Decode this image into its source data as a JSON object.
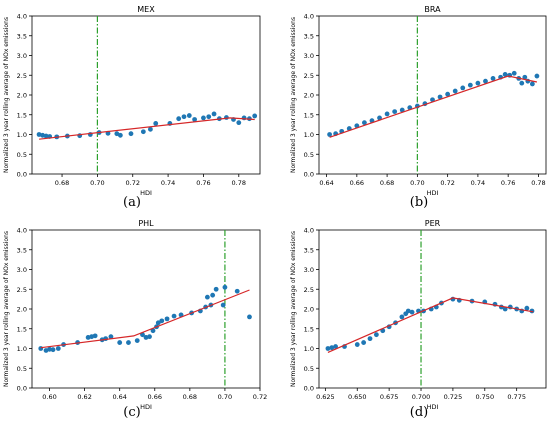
{
  "colors": {
    "points": "#1f77b4",
    "fit": "#d62728",
    "threshold": "#2ca02c"
  },
  "chart_data": [
    {
      "type": "scatter",
      "title": "MEX",
      "panel_label": "(a)",
      "xlabel": "HDI",
      "ylabel": "Normalized 3 year rolling average of NOx emissions",
      "xlim": [
        0.663,
        0.792
      ],
      "ylim": [
        0,
        4.0
      ],
      "xticks": [
        "0.68",
        "0.70",
        "0.72",
        "0.74",
        "0.76",
        "0.78"
      ],
      "yticks": [
        "0.0",
        "0.5",
        "1.0",
        "1.5",
        "2.0",
        "2.5",
        "3.0",
        "3.5",
        "4.0"
      ],
      "threshold_x": 0.7,
      "points": [
        [
          0.667,
          1.0
        ],
        [
          0.669,
          0.98
        ],
        [
          0.671,
          0.96
        ],
        [
          0.673,
          0.95
        ],
        [
          0.677,
          0.94
        ],
        [
          0.683,
          0.96
        ],
        [
          0.69,
          0.97
        ],
        [
          0.696,
          1.0
        ],
        [
          0.701,
          1.05
        ],
        [
          0.706,
          1.03
        ],
        [
          0.711,
          1.02
        ],
        [
          0.713,
          0.98
        ],
        [
          0.719,
          1.02
        ],
        [
          0.726,
          1.07
        ],
        [
          0.73,
          1.13
        ],
        [
          0.733,
          1.28
        ],
        [
          0.741,
          1.28
        ],
        [
          0.746,
          1.4
        ],
        [
          0.749,
          1.45
        ],
        [
          0.752,
          1.48
        ],
        [
          0.755,
          1.38
        ],
        [
          0.76,
          1.42
        ],
        [
          0.763,
          1.45
        ],
        [
          0.766,
          1.52
        ],
        [
          0.769,
          1.4
        ],
        [
          0.773,
          1.43
        ],
        [
          0.777,
          1.38
        ],
        [
          0.78,
          1.3
        ],
        [
          0.783,
          1.42
        ],
        [
          0.786,
          1.4
        ],
        [
          0.789,
          1.47
        ]
      ],
      "fit_line": [
        [
          0.667,
          0.88
        ],
        [
          0.775,
          1.42
        ],
        [
          0.789,
          1.38
        ]
      ]
    },
    {
      "type": "scatter",
      "title": "BRA",
      "panel_label": "(b)",
      "xlabel": "HDI",
      "ylabel": "Normalized 3 year rolling average of NOx emissions",
      "xlim": [
        0.635,
        0.785
      ],
      "ylim": [
        0,
        4.0
      ],
      "xticks": [
        "0.64",
        "0.66",
        "0.68",
        "0.70",
        "0.72",
        "0.74",
        "0.76",
        "0.78"
      ],
      "yticks": [
        "0.0",
        "0.5",
        "1.0",
        "1.5",
        "2.0",
        "2.5",
        "3.0",
        "3.5",
        "4.0"
      ],
      "threshold_x": 0.7,
      "points": [
        [
          0.642,
          1.0
        ],
        [
          0.646,
          1.02
        ],
        [
          0.65,
          1.08
        ],
        [
          0.655,
          1.15
        ],
        [
          0.66,
          1.22
        ],
        [
          0.665,
          1.3
        ],
        [
          0.67,
          1.35
        ],
        [
          0.675,
          1.42
        ],
        [
          0.68,
          1.52
        ],
        [
          0.685,
          1.58
        ],
        [
          0.69,
          1.62
        ],
        [
          0.695,
          1.68
        ],
        [
          0.7,
          1.72
        ],
        [
          0.705,
          1.78
        ],
        [
          0.71,
          1.88
        ],
        [
          0.715,
          1.95
        ],
        [
          0.72,
          2.02
        ],
        [
          0.725,
          2.1
        ],
        [
          0.73,
          2.18
        ],
        [
          0.735,
          2.25
        ],
        [
          0.74,
          2.3
        ],
        [
          0.745,
          2.35
        ],
        [
          0.75,
          2.42
        ],
        [
          0.755,
          2.45
        ],
        [
          0.758,
          2.52
        ],
        [
          0.761,
          2.5
        ],
        [
          0.764,
          2.55
        ],
        [
          0.767,
          2.42
        ],
        [
          0.769,
          2.3
        ],
        [
          0.771,
          2.45
        ],
        [
          0.773,
          2.35
        ],
        [
          0.776,
          2.28
        ],
        [
          0.779,
          2.48
        ]
      ],
      "fit_line": [
        [
          0.642,
          0.93
        ],
        [
          0.76,
          2.48
        ],
        [
          0.779,
          2.33
        ]
      ]
    },
    {
      "type": "scatter",
      "title": "PHL",
      "panel_label": "(c)",
      "xlabel": "HDI",
      "ylabel": "Normalized 3 year rolling average of NOx emissions",
      "xlim": [
        0.59,
        0.72
      ],
      "ylim": [
        0,
        4.0
      ],
      "xticks": [
        "0.60",
        "0.62",
        "0.64",
        "0.66",
        "0.68",
        "0.70",
        "0.72"
      ],
      "yticks": [
        "0.0",
        "0.5",
        "1.0",
        "1.5",
        "2.0",
        "2.5",
        "3.0",
        "3.5",
        "4.0"
      ],
      "threshold_x": 0.7,
      "points": [
        [
          0.595,
          1.0
        ],
        [
          0.598,
          0.95
        ],
        [
          0.6,
          0.98
        ],
        [
          0.602,
          0.97
        ],
        [
          0.605,
          1.0
        ],
        [
          0.608,
          1.1
        ],
        [
          0.616,
          1.15
        ],
        [
          0.622,
          1.28
        ],
        [
          0.624,
          1.3
        ],
        [
          0.626,
          1.32
        ],
        [
          0.63,
          1.22
        ],
        [
          0.632,
          1.25
        ],
        [
          0.635,
          1.3
        ],
        [
          0.64,
          1.15
        ],
        [
          0.645,
          1.15
        ],
        [
          0.65,
          1.2
        ],
        [
          0.653,
          1.35
        ],
        [
          0.655,
          1.28
        ],
        [
          0.657,
          1.3
        ],
        [
          0.659,
          1.45
        ],
        [
          0.661,
          1.55
        ],
        [
          0.662,
          1.65
        ],
        [
          0.664,
          1.7
        ],
        [
          0.667,
          1.75
        ],
        [
          0.671,
          1.82
        ],
        [
          0.675,
          1.85
        ],
        [
          0.681,
          1.9
        ],
        [
          0.686,
          1.95
        ],
        [
          0.689,
          2.05
        ],
        [
          0.69,
          2.3
        ],
        [
          0.692,
          2.1
        ],
        [
          0.693,
          2.35
        ],
        [
          0.695,
          2.5
        ],
        [
          0.699,
          2.1
        ],
        [
          0.7,
          2.55
        ],
        [
          0.707,
          2.45
        ],
        [
          0.714,
          1.8
        ]
      ],
      "fit_line": [
        [
          0.595,
          1.02
        ],
        [
          0.648,
          1.32
        ],
        [
          0.714,
          2.48
        ]
      ]
    },
    {
      "type": "scatter",
      "title": "PER",
      "panel_label": "(d)",
      "xlabel": "HDI",
      "ylabel": "Normalized 3 year rolling average of NOx emissions",
      "xlim": [
        0.62,
        0.798
      ],
      "ylim": [
        0,
        4.0
      ],
      "xticks": [
        "0.625",
        "0.650",
        "0.675",
        "0.700",
        "0.725",
        "0.750",
        "0.775"
      ],
      "yticks": [
        "0.0",
        "0.5",
        "1.0",
        "1.5",
        "2.0",
        "2.5",
        "3.0",
        "3.5",
        "4.0"
      ],
      "threshold_x": 0.7,
      "points": [
        [
          0.627,
          1.0
        ],
        [
          0.63,
          1.02
        ],
        [
          0.633,
          1.05
        ],
        [
          0.64,
          1.05
        ],
        [
          0.65,
          1.1
        ],
        [
          0.655,
          1.15
        ],
        [
          0.66,
          1.25
        ],
        [
          0.665,
          1.35
        ],
        [
          0.67,
          1.45
        ],
        [
          0.675,
          1.55
        ],
        [
          0.68,
          1.65
        ],
        [
          0.685,
          1.8
        ],
        [
          0.688,
          1.88
        ],
        [
          0.69,
          1.95
        ],
        [
          0.693,
          1.92
        ],
        [
          0.698,
          1.95
        ],
        [
          0.702,
          1.95
        ],
        [
          0.708,
          2.0
        ],
        [
          0.712,
          2.05
        ],
        [
          0.716,
          2.15
        ],
        [
          0.725,
          2.25
        ],
        [
          0.73,
          2.22
        ],
        [
          0.74,
          2.2
        ],
        [
          0.75,
          2.18
        ],
        [
          0.758,
          2.12
        ],
        [
          0.763,
          2.05
        ],
        [
          0.766,
          2.0
        ],
        [
          0.77,
          2.05
        ],
        [
          0.775,
          2.0
        ],
        [
          0.779,
          1.95
        ],
        [
          0.783,
          2.02
        ],
        [
          0.787,
          1.95
        ]
      ],
      "fit_line": [
        [
          0.627,
          0.9
        ],
        [
          0.725,
          2.28
        ],
        [
          0.788,
          1.93
        ]
      ]
    }
  ]
}
